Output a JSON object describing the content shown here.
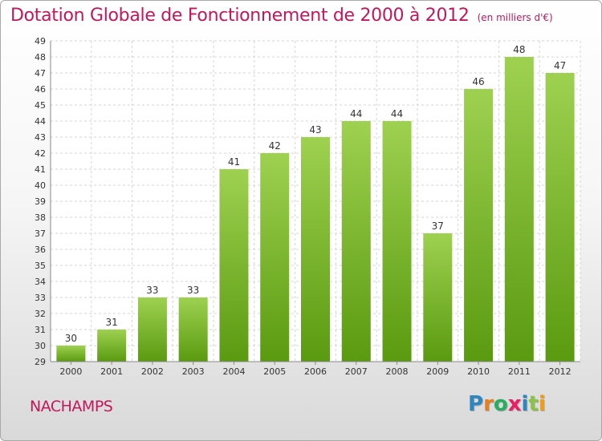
{
  "chart_data": {
    "type": "bar",
    "title": "Dotation Globale de Fonctionnement de 2000 à 2012",
    "subtitle": "(en milliers d'€)",
    "categories": [
      "2000",
      "2001",
      "2002",
      "2003",
      "2004",
      "2005",
      "2006",
      "2007",
      "2008",
      "2009",
      "2010",
      "2011",
      "2012"
    ],
    "values": [
      30,
      31,
      33,
      33,
      41,
      42,
      43,
      44,
      44,
      37,
      46,
      48,
      47
    ],
    "ylim": [
      29,
      49
    ],
    "yticks": [
      29,
      30,
      31,
      32,
      33,
      34,
      35,
      36,
      37,
      38,
      39,
      40,
      41,
      42,
      43,
      44,
      45,
      46,
      47,
      48,
      49
    ],
    "grid": true,
    "bar_color_top": "#9ed150",
    "bar_color_bottom": "#5a9a10"
  },
  "footer": {
    "commune": "NACHAMPS",
    "logo": "Proxiti"
  },
  "colors": {
    "title": "#c2185b",
    "logo_letters": [
      "#2e86c1",
      "#e67e22",
      "#27ae60",
      "#e91e63",
      "#2e86c1",
      "#8bc34a",
      "#f39c12"
    ]
  }
}
